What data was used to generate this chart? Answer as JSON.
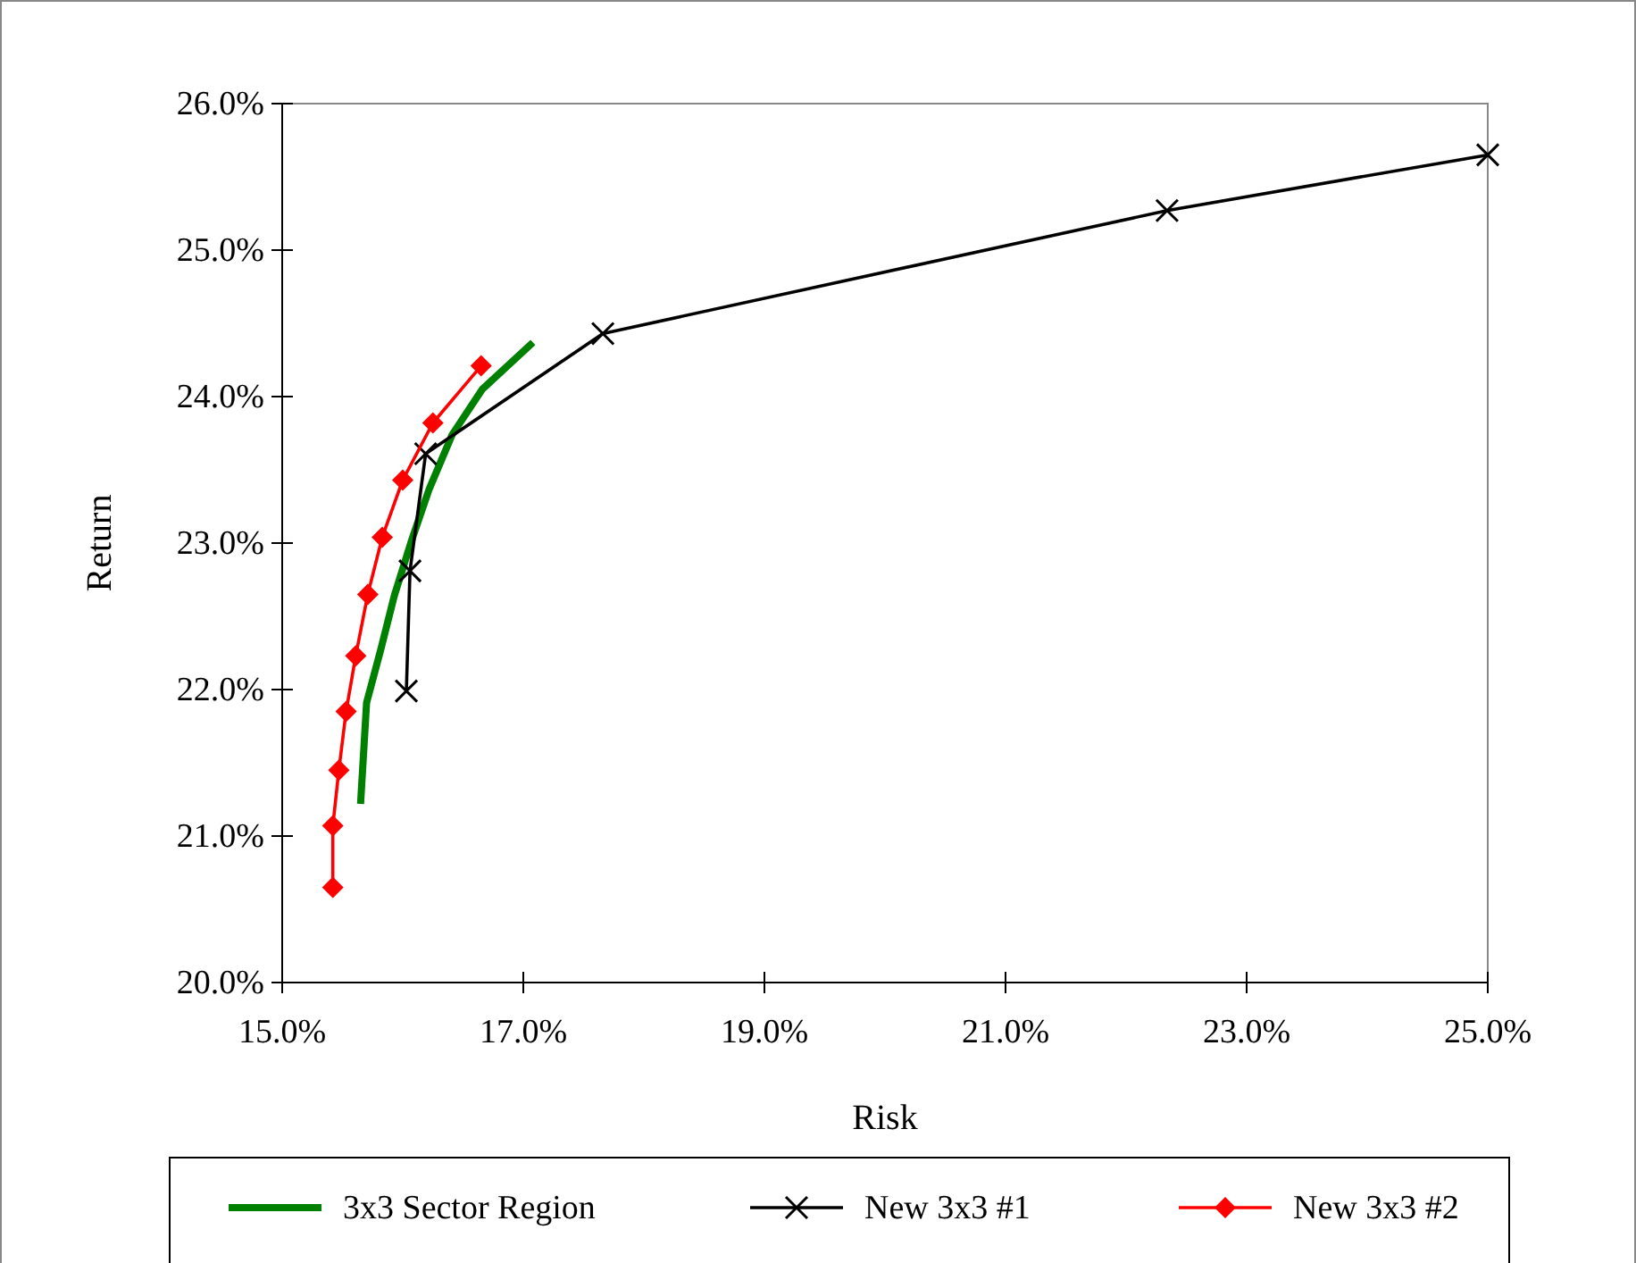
{
  "chart_data": {
    "type": "line",
    "xlabel": "Risk",
    "ylabel": "Return",
    "xlim": [
      15,
      25
    ],
    "ylim": [
      20,
      26
    ],
    "xticks": [
      {
        "value": 15,
        "label": "15.0%"
      },
      {
        "value": 17,
        "label": "17.0%"
      },
      {
        "value": 19,
        "label": "19.0%"
      },
      {
        "value": 21,
        "label": "21.0%"
      },
      {
        "value": 23,
        "label": "23.0%"
      },
      {
        "value": 25,
        "label": "25.0%"
      }
    ],
    "yticks": [
      {
        "value": 20,
        "label": "20.0%"
      },
      {
        "value": 21,
        "label": "21.0%"
      },
      {
        "value": 22,
        "label": "22.0%"
      },
      {
        "value": 23,
        "label": "23.0%"
      },
      {
        "value": 24,
        "label": "24.0%"
      },
      {
        "value": 25,
        "label": "25.0%"
      },
      {
        "value": 26,
        "label": "26.0%"
      }
    ],
    "grid": false,
    "legend": "bottom",
    "series": [
      {
        "name": "3x3 Sector Region",
        "color": "#008000",
        "marker": "none",
        "x": [
          15.65,
          15.7,
          15.82,
          15.93,
          16.07,
          16.22,
          16.41,
          16.66,
          17.08
        ],
        "values": [
          21.22,
          21.91,
          22.28,
          22.64,
          23.01,
          23.37,
          23.74,
          24.05,
          24.37
        ]
      },
      {
        "name": "New 3x3 #1",
        "color": "#000000",
        "marker": "cross",
        "x": [
          16.03,
          16.06,
          16.19,
          17.66,
          22.34,
          25.0
        ],
        "values": [
          21.99,
          22.81,
          23.61,
          24.43,
          25.27,
          25.65
        ]
      },
      {
        "name": "New 3x3 #2",
        "color": "#ff0000",
        "marker": "diamond",
        "x": [
          15.42,
          15.42,
          15.47,
          15.53,
          15.61,
          15.71,
          15.83,
          16.0,
          16.25,
          16.65
        ],
        "values": [
          20.65,
          21.07,
          21.45,
          21.85,
          22.23,
          22.65,
          23.04,
          23.43,
          23.82,
          24.21
        ]
      }
    ]
  }
}
